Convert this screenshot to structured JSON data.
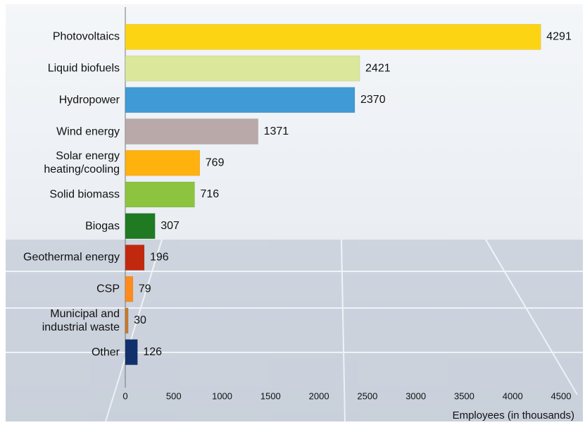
{
  "chart_data": {
    "type": "bar",
    "orientation": "horizontal",
    "categories": [
      "Photovoltaics",
      "Liquid biofuels",
      "Hydropower",
      "Wind energy",
      "Solar energy\nheating/cooling",
      "Solid biomass",
      "Biogas",
      "Geothermal energy",
      "CSP",
      "Municipal and\nindustrial waste",
      "Other"
    ],
    "values": [
      4291,
      2421,
      2370,
      1371,
      769,
      716,
      307,
      196,
      79,
      30,
      126
    ],
    "colors": [
      "#fdd413",
      "#dbe79b",
      "#3f9ad5",
      "#b9a9a8",
      "#ffb10e",
      "#8dc43f",
      "#1f7a22",
      "#c1290f",
      "#ff8b1c",
      "#c87b2a",
      "#11316c"
    ],
    "xlabel": "Employees (in thousands)",
    "xlim": [
      0,
      4500
    ],
    "xticks": [
      0,
      500,
      1000,
      1500,
      2000,
      2500,
      3000,
      3500,
      4000,
      4500
    ],
    "grid": false
  }
}
